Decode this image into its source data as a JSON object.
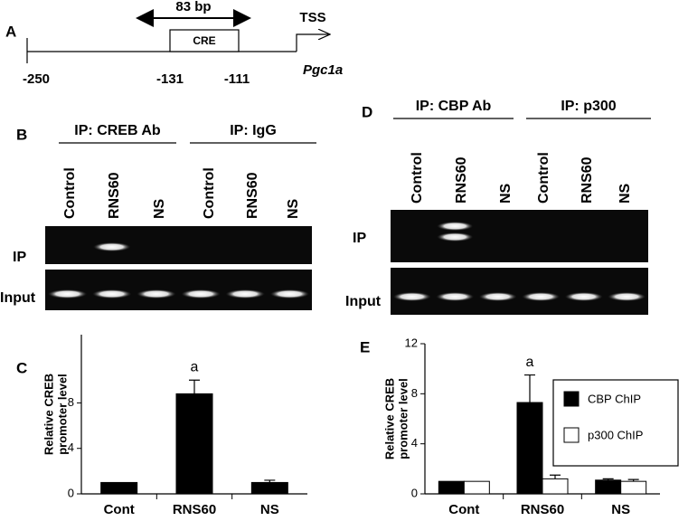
{
  "panel_a": {
    "label": "A",
    "span": "83 bp",
    "box": "CRE",
    "tss": "TSS",
    "positions": [
      "-250",
      "-131",
      "-111"
    ],
    "gene": "Pgc1a"
  },
  "panel_b": {
    "label": "B",
    "groups": [
      "IP: CREB Ab",
      "IP: IgG"
    ],
    "lanes": [
      "Control",
      "RNS60",
      "NS",
      "Control",
      "RNS60",
      "NS"
    ],
    "rows": [
      "IP",
      "Input"
    ]
  },
  "panel_d": {
    "label": "D",
    "groups": [
      "IP: CBP Ab",
      "IP: p300"
    ],
    "lanes": [
      "Control",
      "RNS60",
      "NS",
      "Control",
      "RNS60",
      "NS"
    ],
    "rows": [
      "IP",
      "Input"
    ]
  },
  "panel_labels": [
    "C",
    "E"
  ],
  "chart_data": [
    {
      "type": "bar",
      "ylabel": [
        "Relative CREB",
        "promoter level"
      ],
      "categories": [
        "Cont",
        "RNS60",
        "NS"
      ],
      "series": [
        {
          "color": "#000000",
          "values": [
            1,
            8.8,
            1.0
          ],
          "errors": [
            0,
            1.2,
            0.2
          ]
        }
      ],
      "annotation": "a",
      "ylim": [
        0,
        14
      ],
      "yticks": [
        0,
        4,
        8
      ]
    },
    {
      "type": "bar",
      "ylabel": [
        "Relative CREB",
        "promoter level"
      ],
      "categories": [
        "Cont",
        "RNS60",
        "NS"
      ],
      "series": [
        {
          "name": "CBP ChIP",
          "color": "#000000",
          "values": [
            1,
            7.3,
            1.1
          ],
          "errors": [
            0,
            2.2,
            0.1
          ]
        },
        {
          "name": "p300 ChIP",
          "color": "#ffffff",
          "values": [
            1,
            1.2,
            1.0
          ],
          "errors": [
            0,
            0.3,
            0.15
          ]
        }
      ],
      "annotation": "a",
      "ylim": [
        0,
        12
      ],
      "yticks": [
        0,
        4,
        8,
        12
      ],
      "legend": "upper right"
    }
  ]
}
